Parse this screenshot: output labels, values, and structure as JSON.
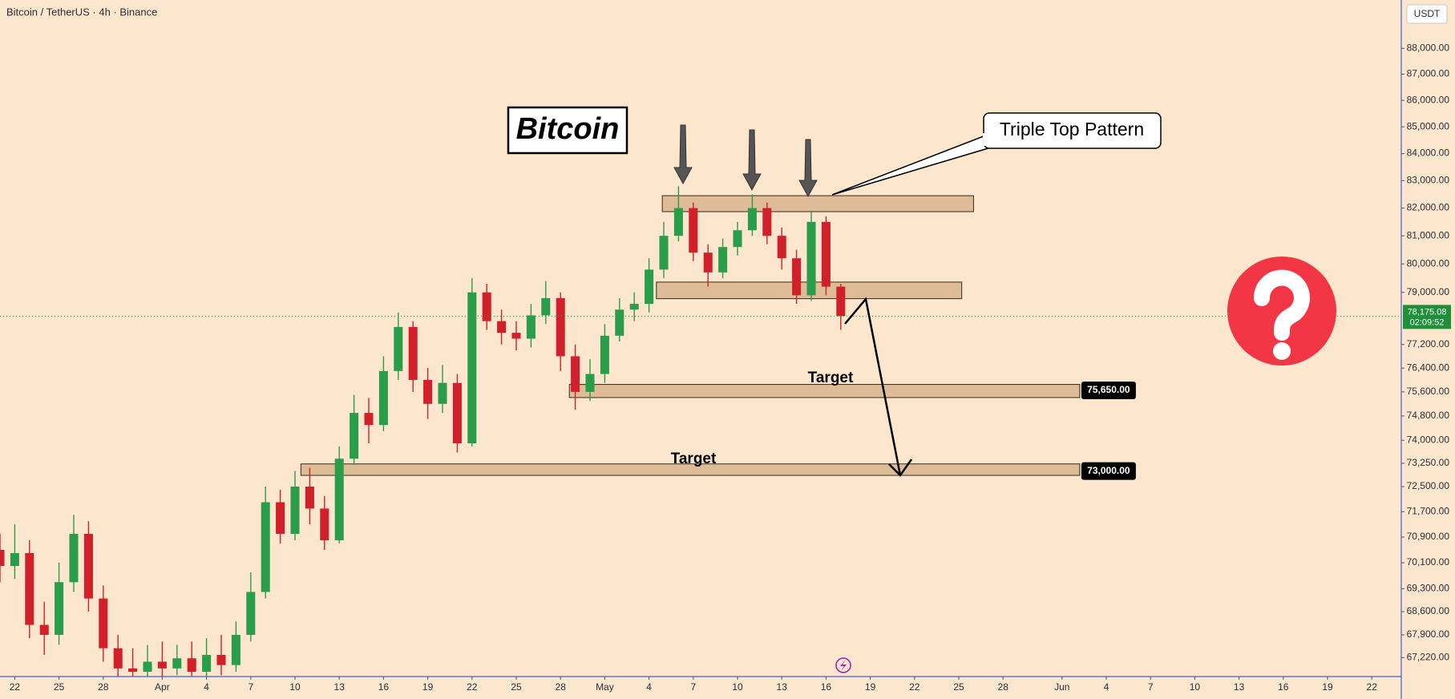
{
  "header": {
    "symbol": "Bitcoin / TetherUS · 4h · Binance",
    "currency": "USDT"
  },
  "chart_data": {
    "type": "candlestick",
    "title": "Bitcoin",
    "pattern_label": "Triple Top Pattern",
    "log_scale": true,
    "grid": false,
    "up_color": "#2a9d4a",
    "down_color": "#d1202a",
    "x": [
      -1,
      0,
      1,
      2,
      3,
      4,
      5,
      6,
      7,
      8,
      9,
      10,
      11,
      12,
      13,
      14,
      15,
      16,
      17,
      18,
      19,
      20,
      21,
      22,
      23,
      24,
      25,
      26,
      27,
      28,
      29,
      30,
      31,
      32,
      33,
      34,
      35,
      36,
      37,
      38,
      39,
      40,
      41,
      42,
      43,
      44,
      45,
      46,
      47,
      48,
      49,
      50,
      51,
      52,
      53,
      54,
      55,
      56
    ],
    "open": [
      70500,
      70000,
      70400,
      68200,
      67900,
      69500,
      71000,
      69000,
      67500,
      66900,
      66800,
      67100,
      66900,
      67200,
      66800,
      67300,
      67000,
      67900,
      69200,
      72000,
      71000,
      72500,
      71800,
      70800,
      73400,
      74900,
      74500,
      76300,
      77800,
      76000,
      75200,
      75900,
      73900,
      79000,
      78000,
      77600,
      77400,
      78200,
      78800,
      76800,
      75600,
      76200,
      77500,
      78400,
      78600,
      79800,
      81000,
      82000,
      80400,
      79700,
      80600,
      81200,
      82000,
      81000,
      80200,
      78900,
      81500,
      79200
    ],
    "high": [
      71000,
      71300,
      70800,
      68900,
      70100,
      71600,
      71400,
      69400,
      67900,
      67500,
      67600,
      67700,
      67600,
      67700,
      67800,
      67900,
      68300,
      69800,
      72500,
      72400,
      73000,
      73100,
      72200,
      73800,
      75500,
      75400,
      76800,
      78300,
      78000,
      76400,
      76500,
      76200,
      79500,
      79300,
      78400,
      78000,
      78600,
      79400,
      79000,
      77200,
      76700,
      77900,
      78800,
      79000,
      80200,
      81500,
      82800,
      82200,
      80700,
      80900,
      81500,
      82500,
      82200,
      81300,
      80500,
      81900,
      81700,
      79300
    ],
    "low": [
      69500,
      69600,
      67800,
      67300,
      67600,
      69200,
      68600,
      67100,
      66500,
      66400,
      66500,
      66600,
      66700,
      66500,
      66600,
      66700,
      66800,
      67700,
      69000,
      70700,
      70800,
      71300,
      70500,
      70700,
      73200,
      73900,
      74300,
      76000,
      75600,
      74700,
      74900,
      73600,
      73800,
      77700,
      77200,
      77000,
      77100,
      77900,
      76300,
      75000,
      75300,
      75900,
      77300,
      78000,
      78300,
      79500,
      80800,
      80100,
      79200,
      79500,
      80300,
      81000,
      80700,
      79800,
      78600,
      78700,
      78900,
      77700
    ],
    "close": [
      70000,
      70400,
      68200,
      67900,
      69500,
      71000,
      69000,
      67500,
      66900,
      66800,
      67100,
      66900,
      67200,
      66800,
      67300,
      67000,
      67900,
      69200,
      72000,
      71000,
      72500,
      71800,
      70800,
      73400,
      74900,
      74500,
      76300,
      77800,
      76000,
      75200,
      75900,
      73900,
      79000,
      78000,
      77600,
      77400,
      78200,
      78800,
      76800,
      75600,
      76200,
      77500,
      78400,
      78600,
      79800,
      81000,
      82000,
      80400,
      79700,
      80600,
      81200,
      82000,
      81000,
      80200,
      78900,
      81500,
      79200,
      78175.08
    ],
    "xlim": [
      -1,
      94
    ],
    "xticks": [
      {
        "value": 0,
        "label": "22"
      },
      {
        "value": 3,
        "label": "25"
      },
      {
        "value": 6,
        "label": "28"
      },
      {
        "value": 10,
        "label": "Apr"
      },
      {
        "value": 13,
        "label": "4"
      },
      {
        "value": 16,
        "label": "7"
      },
      {
        "value": 19,
        "label": "10"
      },
      {
        "value": 22,
        "label": "13"
      },
      {
        "value": 25,
        "label": "16"
      },
      {
        "value": 28,
        "label": "19"
      },
      {
        "value": 31,
        "label": "22"
      },
      {
        "value": 34,
        "label": "25"
      },
      {
        "value": 37,
        "label": "28"
      },
      {
        "value": 40,
        "label": "May"
      },
      {
        "value": 43,
        "label": "4"
      },
      {
        "value": 46,
        "label": "7"
      },
      {
        "value": 49,
        "label": "10"
      },
      {
        "value": 52,
        "label": "13"
      },
      {
        "value": 55,
        "label": "16"
      },
      {
        "value": 58,
        "label": "19"
      },
      {
        "value": 61,
        "label": "22"
      },
      {
        "value": 64,
        "label": "25"
      },
      {
        "value": 67,
        "label": "28"
      },
      {
        "value": 71,
        "label": "Jun"
      },
      {
        "value": 74,
        "label": "4"
      },
      {
        "value": 77,
        "label": "7"
      },
      {
        "value": 80,
        "label": "10"
      },
      {
        "value": 83,
        "label": "13"
      },
      {
        "value": 86,
        "label": "16"
      },
      {
        "value": 89,
        "label": "19"
      },
      {
        "value": 92,
        "label": "22"
      }
    ],
    "ylim": [
      66660,
      89900
    ],
    "yticks": [
      {
        "value": 88000,
        "label": "88,000.00"
      },
      {
        "value": 87000,
        "label": "87,000.00"
      },
      {
        "value": 86000,
        "label": "86,000.00"
      },
      {
        "value": 85000,
        "label": "85,000.00"
      },
      {
        "value": 84000,
        "label": "84,000.00"
      },
      {
        "value": 83000,
        "label": "83,000.00"
      },
      {
        "value": 82000,
        "label": "82,000.00"
      },
      {
        "value": 81000,
        "label": "81,000.00"
      },
      {
        "value": 80000,
        "label": "80,000.00"
      },
      {
        "value": 79000,
        "label": "79,000.00"
      },
      {
        "value": 77200,
        "label": "77,200.00"
      },
      {
        "value": 76400,
        "label": "76,400.00"
      },
      {
        "value": 75600,
        "label": "75,600.00"
      },
      {
        "value": 74800,
        "label": "74,800.00"
      },
      {
        "value": 74000,
        "label": "74,000.00"
      },
      {
        "value": 73250,
        "label": "73,250.00"
      },
      {
        "value": 72500,
        "label": "72,500.00"
      },
      {
        "value": 71700,
        "label": "71,700.00"
      },
      {
        "value": 70900,
        "label": "70,900.00"
      },
      {
        "value": 70100,
        "label": "70,100.00"
      },
      {
        "value": 69300,
        "label": "69,300.00"
      },
      {
        "value": 68600,
        "label": "68,600.00"
      },
      {
        "value": 67900,
        "label": "67,900.00"
      },
      {
        "value": 67220,
        "label": "67,220.00"
      }
    ],
    "last_price": {
      "value": 78175.08,
      "label": "78,175.08"
    },
    "countdown": "02:09:52",
    "zones": [
      {
        "x": [
          43.9,
          65.0
        ],
        "y": [
          81870,
          82450
        ]
      },
      {
        "x": [
          43.5,
          64.2
        ],
        "y": [
          78780,
          79360
        ]
      },
      {
        "x": [
          37.6,
          72.2
        ],
        "y": [
          75410,
          75850
        ],
        "label": "Target",
        "price": {
          "value": 75650,
          "label": "75,650.00"
        }
      },
      {
        "x": [
          19.4,
          72.2
        ],
        "y": [
          72860,
          73230
        ],
        "label": "Target",
        "price": {
          "value": 73000,
          "label": "73,000.00"
        }
      }
    ]
  }
}
